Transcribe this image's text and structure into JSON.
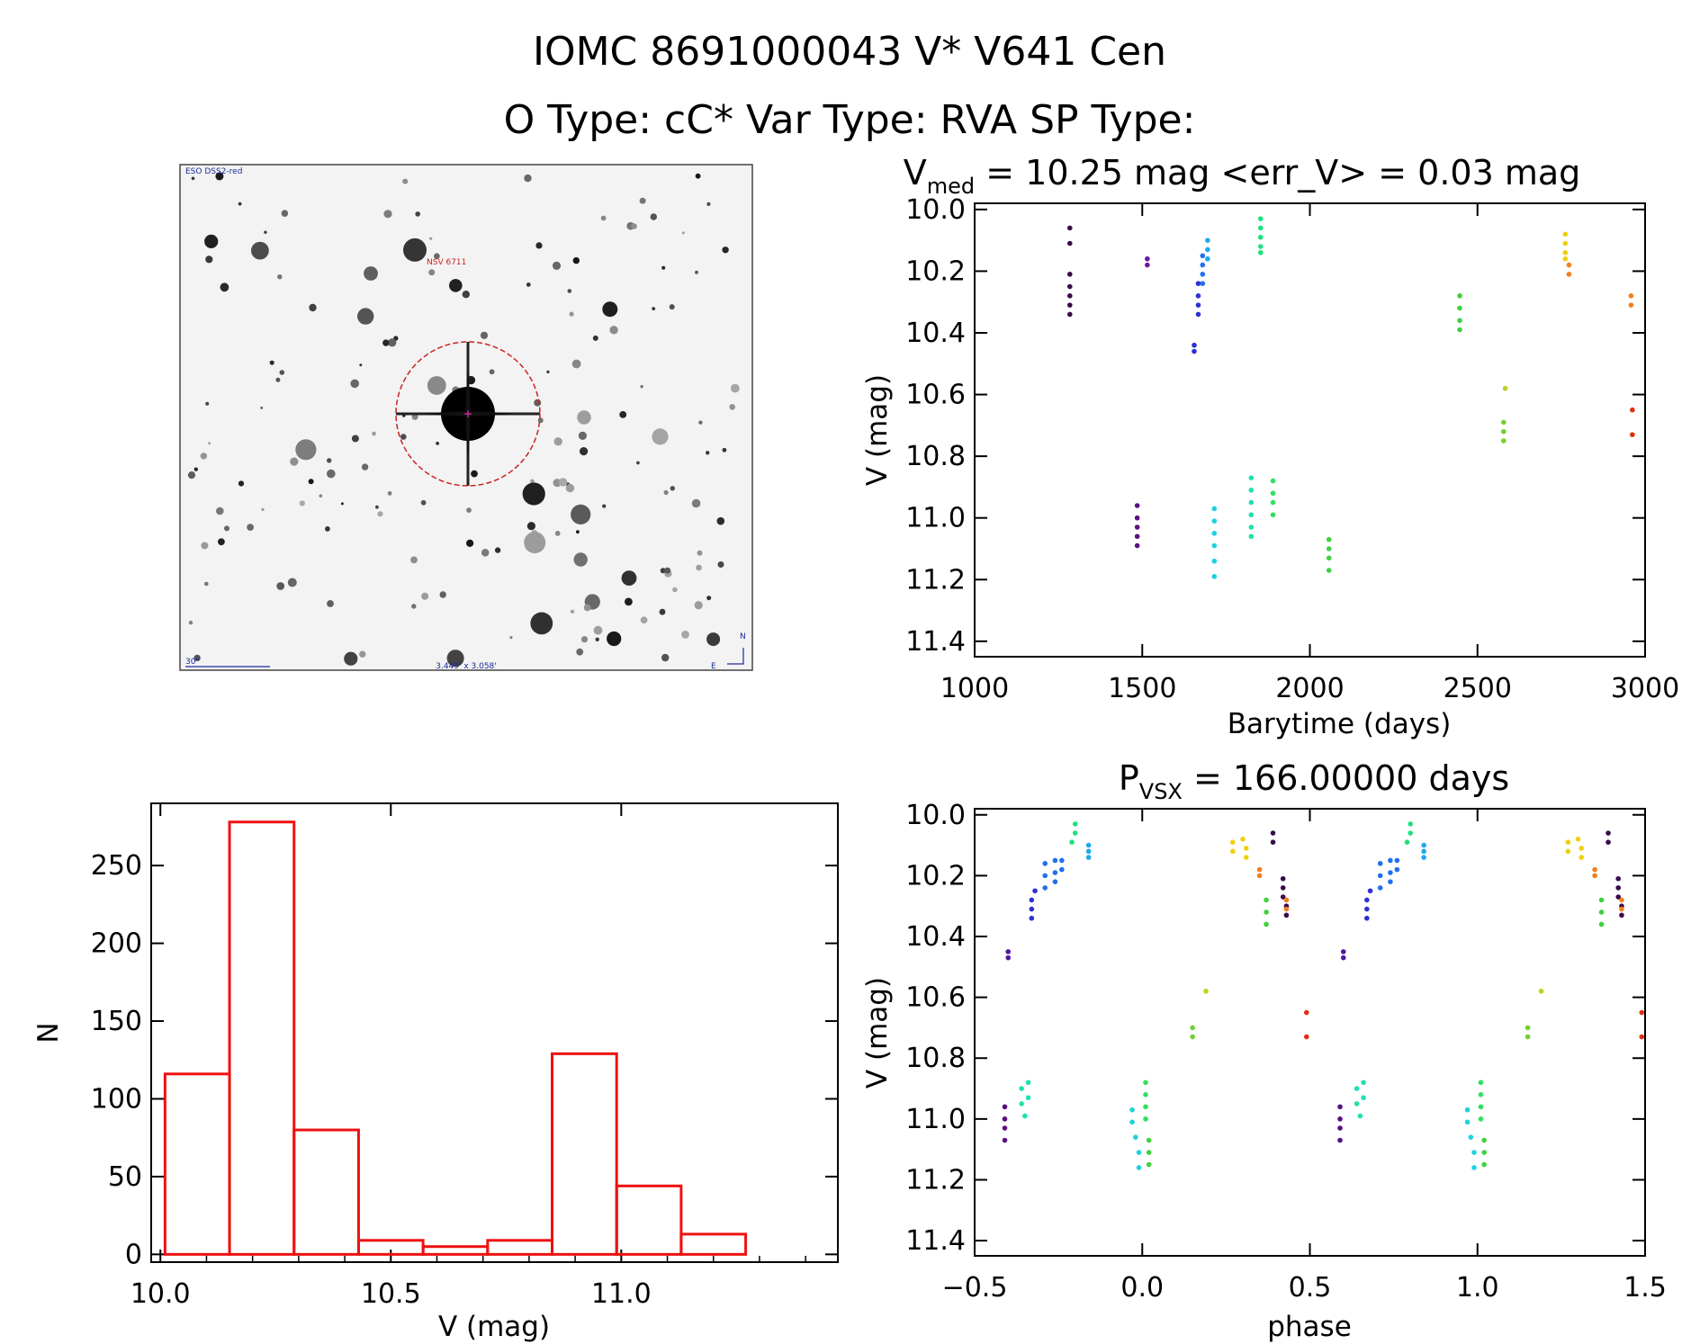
{
  "header": {
    "line1": "IOMC 8691000043    V* V641 Cen",
    "line2": "O Type: cC*  Var Type: RVA  SP Type:"
  },
  "thumbnail": {
    "survey_label": "ESO DSS2-red",
    "target_label": "NSV 6711",
    "scale_label": "30\"",
    "size_label": "3.449' x 3.058'",
    "north_label": "N",
    "east_label": "E",
    "colors": {
      "star": "#111111",
      "circle": "#cc2222",
      "label": "#1a2a9a",
      "target": "#cc2222"
    }
  },
  "chart_data": [
    {
      "id": "lightcurve",
      "type": "scatter",
      "title_main": "V",
      "title_sub": "med",
      "title_rest": " = 10.25 mag <err_V> = 0.03 mag",
      "xlabel": "Barytime (days)",
      "ylabel": "V (mag)",
      "xlim": [
        1000,
        3000
      ],
      "ylim": [
        11.45,
        9.98
      ],
      "xticks": [
        1000,
        1500,
        2000,
        2500,
        3000
      ],
      "xtick_labels": [
        "1000",
        "1500",
        "2000",
        "2500",
        "3000"
      ],
      "yticks": [
        10.0,
        10.2,
        10.4,
        10.6,
        10.8,
        11.0,
        11.2,
        11.4
      ],
      "ytick_labels": [
        "10.0",
        "10.2",
        "10.4",
        "10.6",
        "10.8",
        "11.0",
        "11.2",
        "11.4"
      ],
      "series": [
        {
          "color": "#3a0a4a",
          "points": [
            [
              1284,
              10.06
            ],
            [
              1284,
              10.11
            ],
            [
              1284,
              10.21
            ],
            [
              1284,
              10.25
            ],
            [
              1284,
              10.28
            ],
            [
              1284,
              10.31
            ],
            [
              1284,
              10.34
            ]
          ]
        },
        {
          "color": "#5a1080",
          "points": [
            [
              1485,
              10.96
            ],
            [
              1485,
              11.0
            ],
            [
              1485,
              11.03
            ],
            [
              1485,
              11.06
            ],
            [
              1485,
              11.09
            ]
          ]
        },
        {
          "color": "#6a1aa0",
          "points": [
            [
              1515,
              10.16
            ],
            [
              1515,
              10.18
            ]
          ]
        },
        {
          "color": "#3030d0",
          "points": [
            [
              1655,
              10.44
            ],
            [
              1655,
              10.46
            ],
            [
              1667,
              10.24
            ],
            [
              1667,
              10.28
            ],
            [
              1667,
              10.31
            ],
            [
              1667,
              10.34
            ]
          ]
        },
        {
          "color": "#2070f0",
          "points": [
            [
              1680,
              10.15
            ],
            [
              1680,
              10.18
            ],
            [
              1680,
              10.21
            ],
            [
              1680,
              10.24
            ]
          ]
        },
        {
          "color": "#20a8f0",
          "points": [
            [
              1695,
              10.1
            ],
            [
              1695,
              10.13
            ],
            [
              1695,
              10.16
            ]
          ]
        },
        {
          "color": "#20d0e0",
          "points": [
            [
              1715,
              10.97
            ],
            [
              1715,
              11.01
            ],
            [
              1715,
              11.05
            ],
            [
              1715,
              11.09
            ],
            [
              1715,
              11.14
            ],
            [
              1715,
              11.19
            ]
          ]
        },
        {
          "color": "#20e0b0",
          "points": [
            [
              1825,
              10.87
            ],
            [
              1825,
              10.91
            ],
            [
              1825,
              10.95
            ],
            [
              1825,
              10.99
            ],
            [
              1825,
              11.03
            ],
            [
              1825,
              11.06
            ]
          ]
        },
        {
          "color": "#20e080",
          "points": [
            [
              1853,
              10.03
            ],
            [
              1853,
              10.06
            ],
            [
              1853,
              10.09
            ],
            [
              1853,
              10.12
            ],
            [
              1853,
              10.14
            ]
          ]
        },
        {
          "color": "#30e060",
          "points": [
            [
              1890,
              10.88
            ],
            [
              1890,
              10.92
            ],
            [
              1890,
              10.95
            ],
            [
              1890,
              10.99
            ]
          ]
        },
        {
          "color": "#40d040",
          "points": [
            [
              2057,
              11.07
            ],
            [
              2057,
              11.1
            ],
            [
              2057,
              11.13
            ],
            [
              2057,
              11.17
            ],
            [
              2447,
              10.28
            ],
            [
              2447,
              10.32
            ],
            [
              2447,
              10.36
            ],
            [
              2447,
              10.39
            ]
          ]
        },
        {
          "color": "#70d030",
          "points": [
            [
              2578,
              10.69
            ],
            [
              2578,
              10.72
            ],
            [
              2578,
              10.75
            ]
          ]
        },
        {
          "color": "#c0d020",
          "points": [
            [
              2583,
              10.58
            ]
          ]
        },
        {
          "color": "#f0d010",
          "points": [
            [
              2762,
              10.08
            ],
            [
              2762,
              10.11
            ],
            [
              2762,
              10.14
            ],
            [
              2762,
              10.16
            ]
          ]
        },
        {
          "color": "#f08020",
          "points": [
            [
              2773,
              10.18
            ],
            [
              2773,
              10.21
            ],
            [
              2958,
              10.28
            ],
            [
              2958,
              10.31
            ]
          ]
        },
        {
          "color": "#e03010",
          "points": [
            [
              2962,
              10.65
            ],
            [
              2962,
              10.73
            ]
          ]
        }
      ]
    },
    {
      "id": "histogram",
      "type": "bar",
      "xlabel": "V (mag)",
      "ylabel": "N",
      "xlim": [
        9.98,
        11.47
      ],
      "ylim": [
        -5,
        290
      ],
      "xticks": [
        10.0,
        10.5,
        11.0
      ],
      "xtick_labels": [
        "10.0",
        "10.5",
        "11.0"
      ],
      "yticks": [
        0,
        50,
        100,
        150,
        200,
        250
      ],
      "ytick_labels": [
        "0",
        "50",
        "100",
        "150",
        "200",
        "250"
      ],
      "bin_edges": [
        10.01,
        10.15,
        10.29,
        10.43,
        10.57,
        10.71,
        10.85,
        10.99,
        11.13,
        11.27
      ],
      "values": [
        116,
        278,
        80,
        9,
        5,
        9,
        129,
        44,
        13
      ],
      "color": "#ee1111"
    },
    {
      "id": "phased",
      "type": "scatter",
      "title_main": "P",
      "title_sub": "VSX",
      "title_rest": " = 166.00000 days",
      "xlabel": "phase",
      "ylabel": "V (mag)",
      "xlim": [
        -0.5,
        1.5
      ],
      "ylim": [
        11.45,
        9.98
      ],
      "xticks": [
        -0.5,
        0.0,
        0.5,
        1.0,
        1.5
      ],
      "xtick_labels": [
        "−0.5",
        "0.0",
        "0.5",
        "1.0",
        "1.5"
      ],
      "yticks": [
        10.0,
        10.2,
        10.4,
        10.6,
        10.8,
        11.0,
        11.2,
        11.4
      ],
      "ytick_labels": [
        "10.0",
        "10.2",
        "10.4",
        "10.6",
        "10.8",
        "11.0",
        "11.2",
        "11.4"
      ],
      "series": [
        {
          "color": "#3a0a4a",
          "points": [
            [
              0.39,
              10.06
            ],
            [
              0.39,
              10.09
            ],
            [
              0.42,
              10.21
            ],
            [
              0.42,
              10.24
            ],
            [
              0.42,
              10.27
            ],
            [
              0.43,
              10.3
            ],
            [
              0.43,
              10.33
            ],
            [
              1.39,
              10.06
            ],
            [
              1.39,
              10.09
            ],
            [
              1.42,
              10.21
            ],
            [
              1.42,
              10.24
            ],
            [
              1.42,
              10.27
            ],
            [
              1.43,
              10.3
            ],
            [
              1.43,
              10.33
            ]
          ]
        },
        {
          "color": "#5a1080",
          "points": [
            [
              -0.41,
              10.96
            ],
            [
              -0.41,
              11.0
            ],
            [
              -0.41,
              11.03
            ],
            [
              -0.41,
              11.07
            ],
            [
              0.59,
              10.96
            ],
            [
              0.59,
              11.0
            ],
            [
              0.59,
              11.03
            ],
            [
              0.59,
              11.07
            ]
          ]
        },
        {
          "color": "#5018a0",
          "points": [
            [
              -0.4,
              10.45
            ],
            [
              -0.4,
              10.47
            ],
            [
              0.6,
              10.45
            ],
            [
              0.6,
              10.47
            ]
          ]
        },
        {
          "color": "#3030d0",
          "points": [
            [
              -0.33,
              10.28
            ],
            [
              -0.33,
              10.31
            ],
            [
              -0.33,
              10.34
            ],
            [
              -0.32,
              10.25
            ],
            [
              0.67,
              10.28
            ],
            [
              0.67,
              10.31
            ],
            [
              0.67,
              10.34
            ],
            [
              0.68,
              10.25
            ]
          ]
        },
        {
          "color": "#2070f0",
          "points": [
            [
              -0.29,
              10.16
            ],
            [
              -0.29,
              10.2
            ],
            [
              -0.29,
              10.24
            ],
            [
              -0.26,
              10.15
            ],
            [
              -0.26,
              10.19
            ],
            [
              -0.26,
              10.22
            ],
            [
              -0.24,
              10.15
            ],
            [
              -0.24,
              10.18
            ],
            [
              0.71,
              10.16
            ],
            [
              0.71,
              10.2
            ],
            [
              0.71,
              10.24
            ],
            [
              0.74,
              10.15
            ],
            [
              0.74,
              10.19
            ],
            [
              0.74,
              10.22
            ],
            [
              0.76,
              10.15
            ],
            [
              0.76,
              10.18
            ]
          ]
        },
        {
          "color": "#20a8f0",
          "points": [
            [
              -0.16,
              10.1
            ],
            [
              -0.16,
              10.12
            ],
            [
              -0.16,
              10.14
            ],
            [
              0.84,
              10.1
            ],
            [
              0.84,
              10.12
            ],
            [
              0.84,
              10.14
            ]
          ]
        },
        {
          "color": "#20d0e0",
          "points": [
            [
              -0.03,
              10.97
            ],
            [
              -0.03,
              11.01
            ],
            [
              -0.02,
              11.06
            ],
            [
              -0.01,
              11.11
            ],
            [
              -0.01,
              11.16
            ],
            [
              0.97,
              10.97
            ],
            [
              0.97,
              11.01
            ],
            [
              0.98,
              11.06
            ],
            [
              0.99,
              11.11
            ],
            [
              0.99,
              11.16
            ]
          ]
        },
        {
          "color": "#20e0b0",
          "points": [
            [
              -0.36,
              10.9
            ],
            [
              -0.36,
              10.95
            ],
            [
              -0.35,
              10.99
            ],
            [
              -0.34,
              10.93
            ],
            [
              -0.34,
              10.88
            ],
            [
              0.64,
              10.9
            ],
            [
              0.64,
              10.95
            ],
            [
              0.65,
              10.99
            ],
            [
              0.66,
              10.93
            ],
            [
              0.66,
              10.88
            ]
          ]
        },
        {
          "color": "#20e080",
          "points": [
            [
              -0.2,
              10.03
            ],
            [
              -0.2,
              10.06
            ],
            [
              -0.21,
              10.09
            ],
            [
              0.8,
              10.03
            ],
            [
              0.8,
              10.06
            ],
            [
              0.79,
              10.09
            ]
          ]
        },
        {
          "color": "#30e060",
          "points": [
            [
              0.01,
              10.88
            ],
            [
              0.01,
              10.92
            ],
            [
              0.01,
              10.96
            ],
            [
              0.01,
              11.0
            ],
            [
              1.01,
              10.88
            ],
            [
              1.01,
              10.92
            ],
            [
              1.01,
              10.96
            ],
            [
              1.01,
              11.0
            ]
          ]
        },
        {
          "color": "#40d040",
          "points": [
            [
              0.02,
              11.07
            ],
            [
              0.02,
              11.11
            ],
            [
              0.02,
              11.15
            ],
            [
              0.37,
              10.28
            ],
            [
              0.37,
              10.32
            ],
            [
              0.37,
              10.36
            ],
            [
              1.02,
              11.07
            ],
            [
              1.02,
              11.11
            ],
            [
              1.02,
              11.15
            ],
            [
              1.37,
              10.28
            ],
            [
              1.37,
              10.32
            ],
            [
              1.37,
              10.36
            ]
          ]
        },
        {
          "color": "#70d030",
          "points": [
            [
              0.15,
              10.7
            ],
            [
              0.15,
              10.73
            ],
            [
              1.15,
              10.7
            ],
            [
              1.15,
              10.73
            ]
          ]
        },
        {
          "color": "#c0d020",
          "points": [
            [
              0.19,
              10.58
            ],
            [
              1.19,
              10.58
            ]
          ]
        },
        {
          "color": "#f0d010",
          "points": [
            [
              0.27,
              10.09
            ],
            [
              0.27,
              10.12
            ],
            [
              0.3,
              10.08
            ],
            [
              0.31,
              10.11
            ],
            [
              0.31,
              10.14
            ],
            [
              1.27,
              10.09
            ],
            [
              1.27,
              10.12
            ],
            [
              1.3,
              10.08
            ],
            [
              1.31,
              10.11
            ],
            [
              1.31,
              10.14
            ]
          ]
        },
        {
          "color": "#f08020",
          "points": [
            [
              0.35,
              10.18
            ],
            [
              0.35,
              10.2
            ],
            [
              0.43,
              10.28
            ],
            [
              0.43,
              10.31
            ],
            [
              1.35,
              10.18
            ],
            [
              1.35,
              10.2
            ],
            [
              1.43,
              10.28
            ],
            [
              1.43,
              10.31
            ]
          ]
        },
        {
          "color": "#e03010",
          "points": [
            [
              0.49,
              10.65
            ],
            [
              0.49,
              10.73
            ],
            [
              1.49,
              10.65
            ],
            [
              1.49,
              10.73
            ]
          ]
        }
      ]
    }
  ]
}
